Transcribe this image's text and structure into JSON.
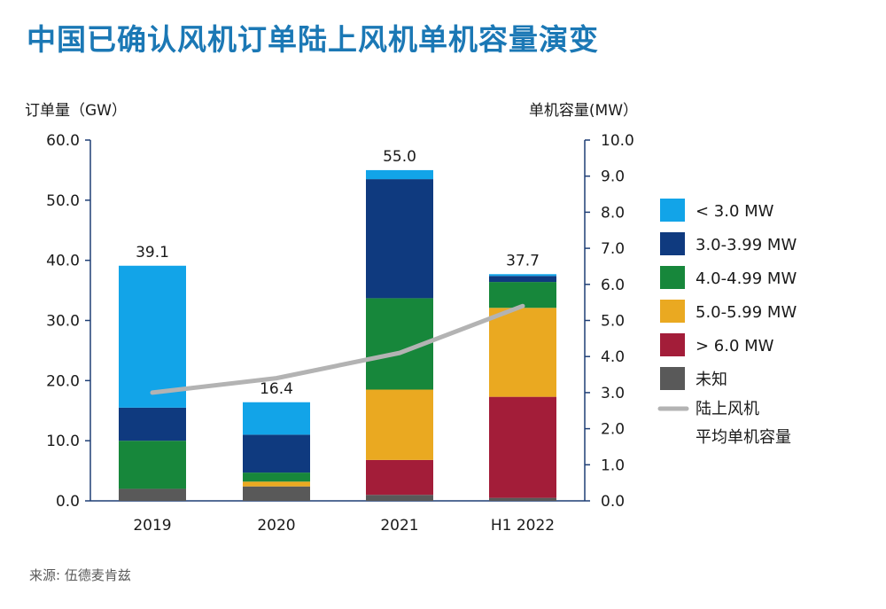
{
  "page": {
    "title": "中国已确认风机订单陆上风机单机容量演变",
    "source": "来源: 伍德麦肯兹"
  },
  "chart_data": {
    "type": "bar",
    "stacked": true,
    "title": "中国已确认风机订单陆上风机单机容量演变",
    "ylabel_left": "订单量（GW）",
    "ylabel_right": "单机容量(MW）",
    "ylim_left": [
      0,
      60
    ],
    "ylim_right": [
      0,
      10
    ],
    "yticks_left": [
      "0.0",
      "10.0",
      "20.0",
      "30.0",
      "40.0",
      "50.0",
      "60.0"
    ],
    "yticks_right": [
      "0.0",
      "1.0",
      "2.0",
      "3.0",
      "4.0",
      "5.0",
      "6.0",
      "7.0",
      "8.0",
      "9.0",
      "10.0"
    ],
    "categories": [
      "2019",
      "2020",
      "2021",
      "H1 2022"
    ],
    "totals": [
      "39.1",
      "16.4",
      "55.0",
      "37.7"
    ],
    "series": [
      {
        "name": "未知",
        "color": "#595959",
        "values": [
          2.0,
          2.4,
          1.0,
          0.5
        ]
      },
      {
        "name": "> 6.0 MW",
        "color": "#a31d39",
        "values": [
          0.0,
          0.0,
          5.8,
          16.8
        ]
      },
      {
        "name": "5.0-5.99 MW",
        "color": "#eaa921",
        "values": [
          0.0,
          0.8,
          11.7,
          14.8
        ]
      },
      {
        "name": "4.0-4.99 MW",
        "color": "#17873b",
        "values": [
          8.0,
          1.5,
          15.2,
          4.3
        ]
      },
      {
        "name": "3.0-3.99 MW",
        "color": "#0f3a7f",
        "values": [
          5.5,
          6.3,
          19.8,
          1.0
        ]
      },
      {
        "name": "< 3.0 MW",
        "color": "#12a4e8",
        "values": [
          23.6,
          5.4,
          1.5,
          0.3
        ]
      }
    ],
    "line": {
      "name": "陆上风机平均单机容量",
      "color": "#b3b3b3",
      "values": [
        3.0,
        3.4,
        4.1,
        5.4
      ]
    },
    "legend": [
      {
        "label": "< 3.0 MW",
        "color": "#12a4e8"
      },
      {
        "label": "3.0-3.99 MW",
        "color": "#0f3a7f"
      },
      {
        "label": "4.0-4.99 MW",
        "color": "#17873b"
      },
      {
        "label": "5.0-5.99 MW",
        "color": "#eaa921"
      },
      {
        "label": "> 6.0 MW",
        "color": "#a31d39"
      },
      {
        "label": "未知",
        "color": "#595959"
      }
    ],
    "legend_line": {
      "label1": "陆上风机",
      "label2": "平均单机容量"
    },
    "legend_position": "right"
  }
}
